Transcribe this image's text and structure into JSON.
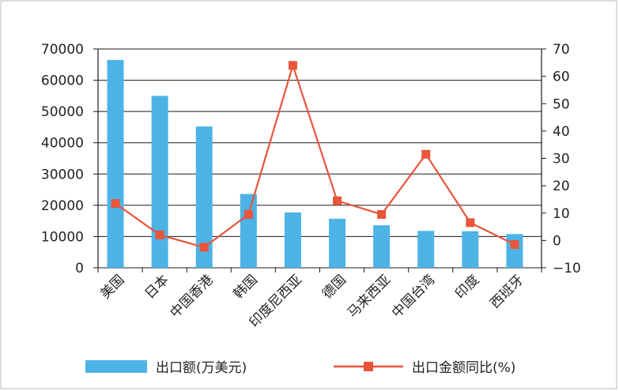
{
  "chart_data": {
    "type": "bar",
    "title": "",
    "xlabel": "",
    "ylabel": "",
    "categories": [
      "美国",
      "日本",
      "中国香港",
      "韩国",
      "印度尼西亚",
      "德国",
      "马来西亚",
      "中国台湾",
      "印度",
      "西班牙"
    ],
    "series": [
      {
        "name": "出口额(万美元)",
        "type": "bar",
        "axis": "left",
        "color": "#4db3e6",
        "values": [
          66500,
          55000,
          45200,
          23600,
          17700,
          15700,
          13600,
          11800,
          11700,
          10800
        ]
      },
      {
        "name": "出口金额同比(%)",
        "type": "line",
        "axis": "right",
        "color": "#e8553a",
        "values": [
          13.5,
          2,
          -2.5,
          9.5,
          64,
          14.5,
          9.5,
          31.5,
          6.5,
          -1.5
        ]
      }
    ],
    "ylim_left": [
      0,
      70000
    ],
    "yticks_left": [
      0,
      10000,
      20000,
      30000,
      40000,
      50000,
      60000,
      70000
    ],
    "ylim_right": [
      -10,
      70
    ],
    "yticks_right": [
      -10,
      0,
      10,
      20,
      30,
      40,
      50,
      60,
      70
    ],
    "yticks_right_labels": [
      "−10",
      "0",
      "10",
      "20",
      "30",
      "40",
      "50",
      "60",
      "70"
    ],
    "grid": true,
    "legend_position": "bottom"
  }
}
